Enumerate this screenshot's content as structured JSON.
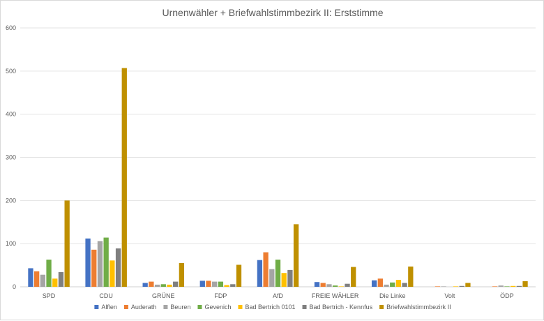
{
  "chart_data": {
    "type": "bar",
    "title": "Urnenwähler + Briefwahlstimmbezirk II: Erststimme",
    "xlabel": "",
    "ylabel": "",
    "ylim": [
      0,
      600
    ],
    "yticks": [
      0,
      100,
      200,
      300,
      400,
      500,
      600
    ],
    "grid": true,
    "legend_position": "bottom",
    "categories": [
      "SPD",
      "CDU",
      "GRÜNE",
      "FDP",
      "AfD",
      "FREIE WÄHLER",
      "Die Linke",
      "Volt",
      "ÖDP"
    ],
    "series": [
      {
        "name": "Alflen",
        "color": "#4472c4",
        "values": [
          43,
          112,
          9,
          14,
          62,
          11,
          15,
          0,
          0
        ]
      },
      {
        "name": "Auderath",
        "color": "#ed7d31",
        "values": [
          36,
          86,
          12,
          14,
          80,
          9,
          19,
          1,
          1
        ]
      },
      {
        "name": "Beuren",
        "color": "#a5a5a5",
        "values": [
          28,
          106,
          5,
          12,
          41,
          6,
          5,
          1,
          3
        ]
      },
      {
        "name": "Gevenich",
        "color": "#70ad47",
        "values": [
          63,
          114,
          6,
          12,
          63,
          3,
          10,
          0,
          1
        ]
      },
      {
        "name": "Bad Bertrich 0101",
        "color": "#ffc000",
        "values": [
          19,
          61,
          5,
          4,
          32,
          1,
          16,
          1,
          2
        ]
      },
      {
        "name": "Bad Bertrich - Kennfus",
        "color": "#7f7f7f",
        "values": [
          34,
          89,
          12,
          6,
          39,
          7,
          9,
          2,
          2
        ]
      },
      {
        "name": "Briefwahlstimmbezirk II",
        "color": "#bf9000",
        "values": [
          200,
          507,
          55,
          51,
          145,
          46,
          47,
          9,
          13
        ]
      }
    ]
  }
}
